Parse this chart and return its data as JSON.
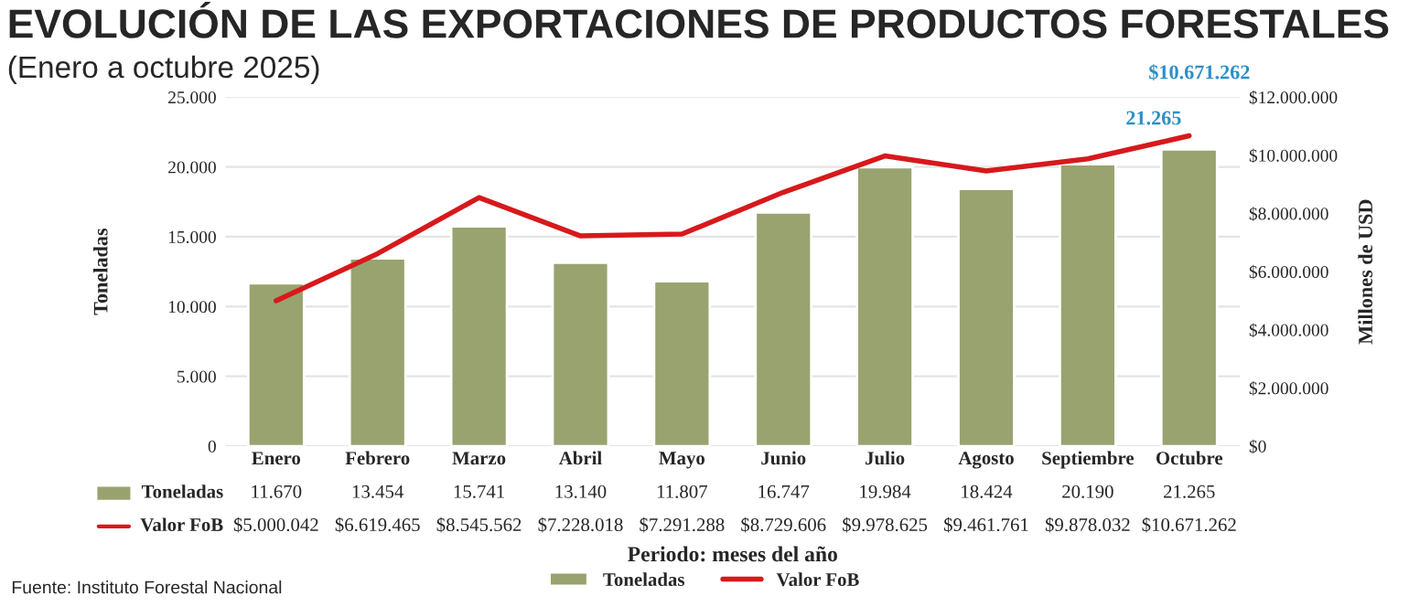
{
  "chart_data": {
    "type": "bar",
    "title": "EVOLUCIÓN DE LAS EXPORTACIONES DE PRODUCTOS FORESTALES",
    "subtitle": "(Enero a octubre 2025)",
    "xlabel": "Periodo: meses del año",
    "ylabel": "Toneladas",
    "y2label": "Millones de USD",
    "categories": [
      "Enero",
      "Febrero",
      "Marzo",
      "Abril",
      "Mayo",
      "Junio",
      "Julio",
      "Agosto",
      "Septiembre",
      "Octubre"
    ],
    "series": [
      {
        "name": "Toneladas",
        "color": "#98a36f",
        "values": [
          11670,
          13454,
          15741,
          13140,
          11807,
          16747,
          19984,
          18424,
          20190,
          21265
        ],
        "value_labels": [
          "11.670",
          "13.454",
          "15.741",
          "13.140",
          "11.807",
          "16.747",
          "19.984",
          "18.424",
          "20.190",
          "21.265"
        ]
      },
      {
        "name": "Valor FoB",
        "type": "line",
        "axis": "y2",
        "color": "#d7191c",
        "values": [
          5000042,
          6619465,
          8545562,
          7228018,
          7291288,
          8729606,
          9978625,
          9461761,
          9878032,
          10671262
        ],
        "value_labels": [
          "$5.000.042",
          "$6.619.465",
          "$8.545.562",
          "$7.228.018",
          "$7.291.288",
          "$8.729.606",
          "$9.978.625",
          "$9.461.761",
          "$9.878.032",
          "$10.671.262"
        ]
      }
    ],
    "ylim": [
      0,
      25000
    ],
    "yticks": [
      {
        "value": 0,
        "label": "0"
      },
      {
        "value": 5000,
        "label": "5.000"
      },
      {
        "value": 10000,
        "label": "10.000"
      },
      {
        "value": 15000,
        "label": "15.000"
      },
      {
        "value": 20000,
        "label": "20.000"
      },
      {
        "value": 25000,
        "label": "25.000"
      }
    ],
    "y2lim": [
      0,
      12000000
    ],
    "y2ticks": [
      {
        "value": 0,
        "label": "$0"
      },
      {
        "value": 2000000,
        "label": "$2.000.000"
      },
      {
        "value": 4000000,
        "label": "$4.000.000"
      },
      {
        "value": 6000000,
        "label": "$6.000.000"
      },
      {
        "value": 8000000,
        "label": "$8.000.000"
      },
      {
        "value": 10000000,
        "label": "$10.000.000"
      },
      {
        "value": 12000000,
        "label": "$12.000.000"
      }
    ],
    "annotations": [
      {
        "text": "21.265",
        "x": "Octubre",
        "y": 21265
      },
      "$10.671.262",
      "Fuente: Instituto Forestal Nacional"
    ],
    "grid": "y",
    "legend": "bottom",
    "line_style": "solid",
    "marker": "none"
  }
}
